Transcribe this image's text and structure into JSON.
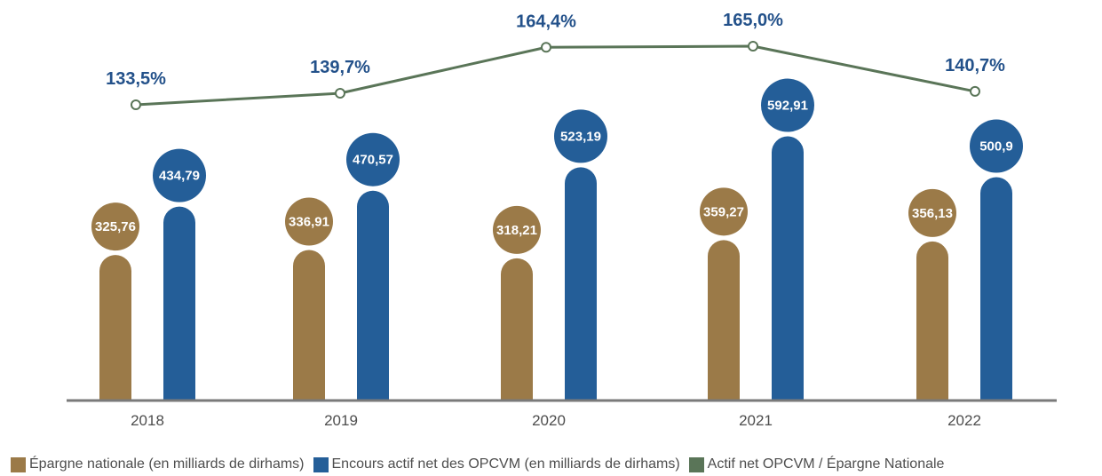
{
  "colors": {
    "epargne": "#9b7a48",
    "encours": "#245e98",
    "ratio": "#5a7558",
    "ratio_label": "#23518a",
    "axis": "#7a7a7a",
    "tick_text": "#4d4d4d"
  },
  "chart_data": {
    "type": "bar",
    "categories": [
      "2018",
      "2019",
      "2020",
      "2021",
      "2022"
    ],
    "series": [
      {
        "name": "Épargne nationale (en milliards de dirhams)",
        "values": [
          325.76,
          336.91,
          318.21,
          359.27,
          356.13
        ],
        "labels": [
          "325,76",
          "336,91",
          "318,21",
          "359,27",
          "356,13"
        ],
        "color": "#9b7a48"
      },
      {
        "name": "Encours actif net des OPCVM (en milliards de dirhams)",
        "values": [
          434.79,
          470.57,
          523.19,
          592.91,
          500.9
        ],
        "labels": [
          "434,79",
          "470,57",
          "523,19",
          "592,91",
          "500,9"
        ],
        "color": "#245e98"
      },
      {
        "name": "Actif net OPCVM / Épargne Nationale",
        "type": "line",
        "values": [
          133.5,
          139.7,
          164.4,
          165.0,
          140.7
        ],
        "labels": [
          "133,5%",
          "139,7%",
          "164,4%",
          "165,0%",
          "140,7%"
        ],
        "color": "#5a7558"
      }
    ],
    "grid": false,
    "legend_position": "bottom"
  }
}
